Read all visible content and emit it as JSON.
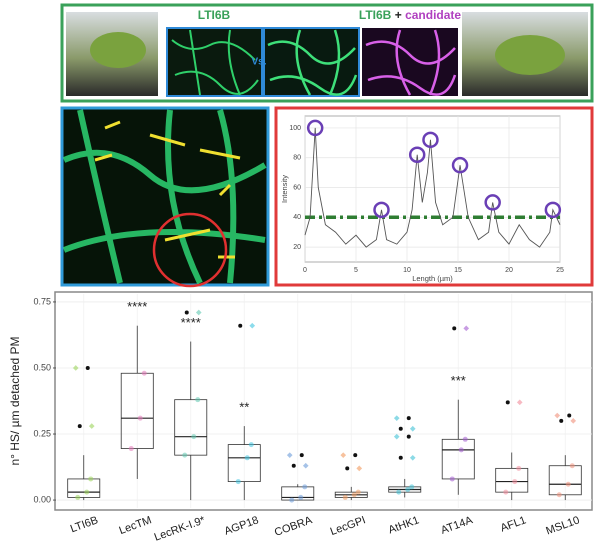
{
  "header": {
    "label_left": "LTI6B",
    "versus": "Vs.",
    "label_right_a": "LTI6B",
    "label_right_plus": "+",
    "label_right_b": "candidate"
  },
  "chart_data": [
    {
      "type": "line",
      "xlabel": "Length (µm)",
      "ylabel": "Intensity",
      "x": [
        0,
        0.5,
        1,
        1.3,
        2,
        3,
        4,
        5,
        6,
        7,
        7.5,
        8,
        9,
        10,
        10.5,
        11,
        11.5,
        12,
        12.3,
        12.8,
        13.5,
        14.5,
        15.2,
        16,
        17,
        18,
        18.4,
        19,
        20,
        21,
        22,
        23,
        24,
        24.3,
        25
      ],
      "values": [
        28,
        40,
        100,
        60,
        35,
        30,
        22,
        28,
        20,
        25,
        45,
        25,
        22,
        30,
        45,
        82,
        50,
        70,
        92,
        50,
        35,
        40,
        75,
        40,
        25,
        30,
        50,
        30,
        22,
        35,
        25,
        20,
        30,
        45,
        35
      ],
      "color": "#555555",
      "threshold": 40,
      "threshold_color": "#2e7d32",
      "markers": {
        "x": [
          1,
          7.5,
          11,
          12.3,
          15.2,
          18.4,
          24.3
        ],
        "y": [
          100,
          45,
          82,
          92,
          75,
          50,
          45
        ],
        "color": "#6a3fb5"
      },
      "xlim": [
        0,
        25
      ],
      "ylim": [
        10,
        108
      ],
      "xticks": [
        0,
        5,
        10,
        15,
        20,
        25
      ],
      "yticks": [
        20,
        40,
        60,
        80,
        100
      ],
      "grid": true
    },
    {
      "type": "box",
      "ylabel": "n° HS/ µm detached PM",
      "categories": [
        "LTI6B",
        "LecTM",
        "LecRK-I.9*",
        "AGP18",
        "COBRA",
        "LecGPI",
        "AtHK1",
        "AT14A",
        "AFL1",
        "MSL10"
      ],
      "colors": [
        "#9bd35a",
        "#e377b8",
        "#5fc8b0",
        "#40c4e0",
        "#6b9bd8",
        "#f29a5e",
        "#3fc1d6",
        "#a35bd0",
        "#f28a9a",
        "#f0907a"
      ],
      "boxes": [
        {
          "min": 0,
          "q1": 0.01,
          "median": 0.03,
          "q3": 0.08,
          "max": 0.17,
          "outliers": [
            0.28,
            0.5
          ]
        },
        {
          "min": 0.08,
          "q1": 0.195,
          "median": 0.31,
          "q3": 0.48,
          "max": 0.66,
          "outliers": []
        },
        {
          "min": 0,
          "q1": 0.17,
          "median": 0.24,
          "q3": 0.38,
          "max": 0.6,
          "outliers": [
            0.71
          ]
        },
        {
          "min": 0,
          "q1": 0.07,
          "median": 0.16,
          "q3": 0.21,
          "max": 0.28,
          "outliers": [
            0.66
          ]
        },
        {
          "min": 0,
          "q1": 0,
          "median": 0.01,
          "q3": 0.05,
          "max": 0.06,
          "outliers": [
            0.13,
            0.17
          ]
        },
        {
          "min": 0,
          "q1": 0.01,
          "median": 0.02,
          "q3": 0.03,
          "max": 0.05,
          "outliers": [
            0.12,
            0.17
          ]
        },
        {
          "min": 0.01,
          "q1": 0.03,
          "median": 0.04,
          "q3": 0.05,
          "max": 0.08,
          "outliers": [
            0.16,
            0.24,
            0.27,
            0.31
          ]
        },
        {
          "min": 0.02,
          "q1": 0.08,
          "median": 0.19,
          "q3": 0.23,
          "max": 0.38,
          "outliers": [
            0.65
          ]
        },
        {
          "min": 0,
          "q1": 0.03,
          "median": 0.07,
          "q3": 0.12,
          "max": 0.18,
          "outliers": [
            0.37
          ]
        },
        {
          "min": 0,
          "q1": 0.02,
          "median": 0.06,
          "q3": 0.13,
          "max": 0.17,
          "outliers": [
            0.3,
            0.32
          ]
        }
      ],
      "significance": [
        null,
        "****",
        "****",
        "**",
        null,
        null,
        null,
        "***",
        null,
        null
      ],
      "ylim": [
        -0.03,
        0.78
      ],
      "yticks": [
        {
          "value": 0,
          "label": "0.00"
        },
        {
          "value": 0.25,
          "label": "0.25"
        },
        {
          "value": 0.5,
          "label": "0.50"
        },
        {
          "value": 0.75,
          "label": "0.75"
        }
      ],
      "grid": true
    }
  ]
}
